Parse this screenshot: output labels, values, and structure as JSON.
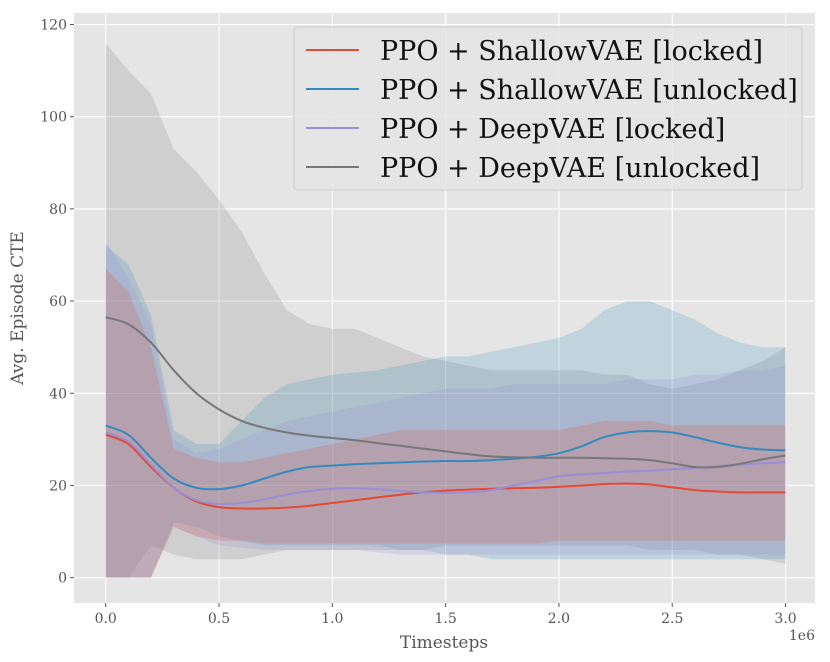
{
  "chart_data": {
    "type": "line",
    "title": "",
    "xlabel": "Timesteps",
    "ylabel": "Avg. Episode CTE",
    "x_offset_label": "1e6",
    "xlim": [
      -0.14,
      3.13
    ],
    "ylim": [
      -5.5,
      122.5
    ],
    "xticks": [
      0.0,
      0.5,
      1.0,
      1.5,
      2.0,
      2.5,
      3.0
    ],
    "xtick_labels": [
      "0.0",
      "0.5",
      "1.0",
      "1.5",
      "2.0",
      "2.5",
      "3.0"
    ],
    "yticks": [
      0,
      20,
      40,
      60,
      80,
      100,
      120
    ],
    "ytick_labels": [
      "0",
      "20",
      "40",
      "60",
      "80",
      "100",
      "120"
    ],
    "grid": true,
    "legend_position": "top-right",
    "series": [
      {
        "name": "PPO + ShallowVAE [locked]",
        "color": "#e24a33",
        "x": [
          0.0,
          0.1,
          0.2,
          0.3,
          0.4,
          0.5,
          0.6,
          0.7,
          0.8,
          0.9,
          1.0,
          1.1,
          1.2,
          1.3,
          1.4,
          1.5,
          1.6,
          1.7,
          1.8,
          1.9,
          2.0,
          2.1,
          2.2,
          2.3,
          2.4,
          2.5,
          2.6,
          2.7,
          2.8,
          2.9,
          3.0
        ],
        "mean": [
          31,
          29,
          24,
          19.5,
          16.5,
          15.3,
          15,
          15,
          15.2,
          15.6,
          16.2,
          16.8,
          17.4,
          18,
          18.5,
          18.9,
          19.1,
          19.3,
          19.4,
          19.5,
          19.7,
          20,
          20.3,
          20.4,
          20.2,
          19.6,
          19,
          18.7,
          18.5,
          18.5,
          18.5
        ],
        "lower": [
          0,
          0,
          0,
          11,
          9,
          8,
          8,
          7.5,
          7.5,
          7.5,
          7.5,
          7.5,
          7.5,
          7.5,
          7.5,
          7.5,
          7.5,
          7.5,
          7.5,
          7.5,
          8,
          8,
          8,
          8,
          8,
          8,
          8,
          8,
          8,
          8,
          8
        ],
        "upper": [
          67,
          62,
          50,
          28,
          26,
          25,
          25,
          26,
          27,
          28,
          29,
          30,
          31,
          32,
          32,
          32,
          32,
          32,
          32,
          32,
          32,
          33,
          34,
          34,
          34,
          33,
          33,
          33,
          33,
          33,
          33
        ]
      },
      {
        "name": "PPO + ShallowVAE [unlocked]",
        "color": "#348abd",
        "x": [
          0.0,
          0.1,
          0.2,
          0.3,
          0.4,
          0.5,
          0.6,
          0.7,
          0.8,
          0.9,
          1.0,
          1.1,
          1.2,
          1.3,
          1.4,
          1.5,
          1.6,
          1.7,
          1.8,
          1.9,
          2.0,
          2.1,
          2.2,
          2.3,
          2.4,
          2.5,
          2.6,
          2.7,
          2.8,
          2.9,
          3.0
        ],
        "mean": [
          33,
          31,
          26,
          21.5,
          19.5,
          19.2,
          20,
          21.5,
          23,
          24,
          24.3,
          24.6,
          24.8,
          25,
          25.2,
          25.3,
          25.3,
          25.5,
          25.8,
          26.2,
          27,
          28.5,
          30.5,
          31.5,
          31.8,
          31.5,
          30.5,
          29.3,
          28.3,
          27.8,
          27.6
        ],
        "lower": [
          0,
          0,
          0,
          12,
          11,
          9,
          8,
          7,
          7,
          7,
          7,
          7,
          7,
          6,
          6,
          5,
          5,
          4,
          4,
          4,
          4,
          4,
          4,
          4,
          4,
          4,
          4,
          4,
          4,
          4,
          4
        ],
        "upper": [
          72,
          68,
          57,
          32,
          29,
          29,
          34,
          39,
          42,
          43,
          44,
          44.5,
          45,
          46,
          47,
          48,
          48,
          49,
          50,
          51,
          52,
          54,
          58,
          60,
          60,
          58,
          56,
          53,
          51,
          50,
          50
        ]
      },
      {
        "name": "PPO + DeepVAE [locked]",
        "color": "#988ed5",
        "x": [
          0.0,
          0.1,
          0.2,
          0.3,
          0.4,
          0.5,
          0.6,
          0.7,
          0.8,
          0.9,
          1.0,
          1.1,
          1.2,
          1.3,
          1.4,
          1.5,
          1.6,
          1.7,
          1.8,
          1.9,
          2.0,
          2.1,
          2.2,
          2.3,
          2.4,
          2.5,
          2.6,
          2.7,
          2.8,
          2.9,
          3.0
        ],
        "mean": [
          31.5,
          29.5,
          24.5,
          19.5,
          16.8,
          16,
          16.2,
          17,
          18,
          18.8,
          19.3,
          19.4,
          19.2,
          18.8,
          18.5,
          18.4,
          18.5,
          19,
          20,
          21,
          22,
          22.4,
          22.7,
          23,
          23.2,
          23.5,
          23.8,
          24.2,
          24.5,
          24.8,
          25
        ],
        "lower": [
          0,
          0,
          0,
          11,
          9,
          7,
          6.5,
          6,
          6,
          6,
          6,
          6,
          5.5,
          5,
          5,
          5,
          5,
          5,
          5,
          5,
          5,
          5,
          5,
          5,
          5,
          5,
          5,
          5,
          5,
          5,
          5
        ],
        "upper": [
          73,
          65,
          55,
          30,
          27,
          28,
          30,
          32,
          34,
          35,
          36,
          37,
          38,
          39,
          40,
          41,
          41,
          41,
          42,
          42,
          42,
          42,
          42,
          43,
          43,
          43,
          44,
          44,
          45,
          45,
          46
        ]
      },
      {
        "name": "PPO + DeepVAE [unlocked]",
        "color": "#777777",
        "x": [
          0.0,
          0.1,
          0.2,
          0.3,
          0.4,
          0.5,
          0.6,
          0.7,
          0.8,
          0.9,
          1.0,
          1.1,
          1.2,
          1.3,
          1.4,
          1.5,
          1.6,
          1.7,
          1.8,
          1.9,
          2.0,
          2.1,
          2.2,
          2.3,
          2.4,
          2.5,
          2.6,
          2.7,
          2.8,
          2.9,
          3.0
        ],
        "mean": [
          56.5,
          55,
          51,
          45,
          40,
          36.5,
          34,
          32.5,
          31.5,
          30.8,
          30.3,
          29.8,
          29.2,
          28.6,
          28,
          27.4,
          26.8,
          26.3,
          26.1,
          26,
          26,
          26,
          25.9,
          25.8,
          25.5,
          24.8,
          24,
          24,
          24.7,
          25.7,
          26.5
        ],
        "lower": [
          0,
          0,
          7,
          5,
          4,
          4,
          4,
          5,
          6,
          6,
          6,
          6,
          6,
          6,
          6,
          7,
          7,
          7,
          7,
          7,
          7,
          7,
          7,
          7,
          6,
          6,
          6,
          5,
          5,
          4,
          3
        ],
        "upper": [
          116,
          110,
          105,
          93,
          88,
          82,
          75,
          66,
          58,
          55,
          54,
          54,
          52,
          50,
          48,
          47,
          46,
          45,
          45,
          45,
          45,
          45,
          44,
          44,
          42,
          41,
          42,
          43,
          45,
          47,
          50
        ]
      }
    ]
  }
}
